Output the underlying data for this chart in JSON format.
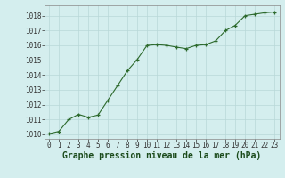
{
  "x": [
    0,
    1,
    2,
    3,
    4,
    5,
    6,
    7,
    8,
    9,
    10,
    11,
    12,
    13,
    14,
    15,
    16,
    17,
    18,
    19,
    20,
    21,
    22,
    23
  ],
  "y": [
    1010.05,
    1010.2,
    1011.0,
    1011.35,
    1011.15,
    1011.3,
    1012.3,
    1013.3,
    1014.3,
    1015.05,
    1016.0,
    1016.05,
    1016.0,
    1015.88,
    1015.78,
    1016.0,
    1016.05,
    1016.3,
    1017.0,
    1017.35,
    1018.0,
    1018.1,
    1018.2,
    1018.25
  ],
  "ylim": [
    1009.7,
    1018.7
  ],
  "yticks": [
    1010,
    1011,
    1012,
    1013,
    1014,
    1015,
    1016,
    1017,
    1018
  ],
  "xticks": [
    0,
    1,
    2,
    3,
    4,
    5,
    6,
    7,
    8,
    9,
    10,
    11,
    12,
    13,
    14,
    15,
    16,
    17,
    18,
    19,
    20,
    21,
    22,
    23
  ],
  "xlabel": "Graphe pression niveau de la mer (hPa)",
  "line_color": "#2d6a2d",
  "marker_color": "#2d6a2d",
  "bg_color": "#d4eeee",
  "grid_color": "#b8d8d8",
  "axis_label_color": "#1a4a1a",
  "tick_label_fontsize": 5.5,
  "xlabel_fontsize": 7.0
}
